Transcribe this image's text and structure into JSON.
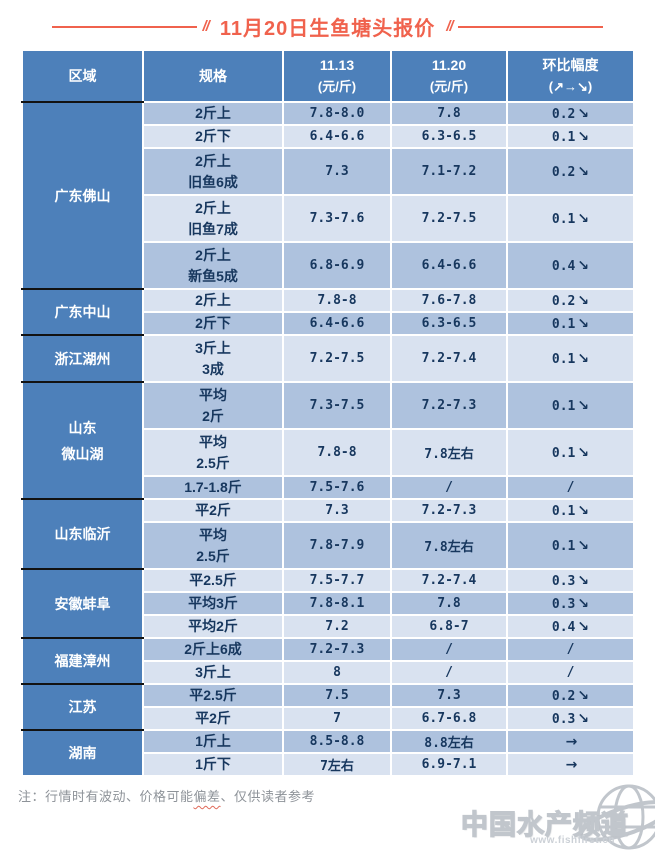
{
  "title": {
    "text": "11月20日生鱼塘头报价",
    "decor": "//"
  },
  "header": {
    "region": "区域",
    "spec": "规格",
    "date1": "11.13",
    "date2": "11.20",
    "unit": "(元/斤)",
    "change": "环比幅度",
    "change_sub": "(↗→↘)"
  },
  "colors": {
    "header_blue": "#4d80ba",
    "row_dark": "#aec2de",
    "row_light": "#d9e2f0",
    "text_navy": "#17375e",
    "green": "#00a651",
    "title_coral": "#f0624d"
  },
  "table": {
    "regions": [
      {
        "name": "广东佛山",
        "rows": [
          {
            "spec": "2斤上",
            "p1113": "7.8-8.0",
            "p1120": "7.8",
            "change": "0.2",
            "dir": "down"
          },
          {
            "spec": "2斤下",
            "p1113": "6.4-6.6",
            "p1120": "6.3-6.5",
            "change": "0.1",
            "dir": "down"
          },
          {
            "spec": "2斤上\n旧鱼6成",
            "p1113": "7.3",
            "p1120": "7.1-7.2",
            "change": "0.2",
            "dir": "down"
          },
          {
            "spec": "2斤上\n旧鱼7成",
            "p1113": "7.3-7.6",
            "p1120": "7.2-7.5",
            "change": "0.1",
            "dir": "down"
          },
          {
            "spec": "2斤上\n新鱼5成",
            "p1113": "6.8-6.9",
            "p1120": "6.4-6.6",
            "change": "0.4",
            "dir": "down"
          }
        ]
      },
      {
        "name": "广东中山",
        "rows": [
          {
            "spec": "2斤上",
            "p1113": "7.8-8",
            "p1120": "7.6-7.8",
            "change": "0.2",
            "dir": "down"
          },
          {
            "spec": "2斤下",
            "p1113": "6.4-6.6",
            "p1120": "6.3-6.5",
            "change": "0.1",
            "dir": "down"
          }
        ]
      },
      {
        "name": "浙江湖州",
        "rows": [
          {
            "spec": "3斤上\n3成",
            "p1113": "7.2-7.5",
            "p1120": "7.2-7.4",
            "change": "0.1",
            "dir": "down"
          }
        ]
      },
      {
        "name": "山东\n微山湖",
        "rows": [
          {
            "spec": "平均\n2斤",
            "p1113": "7.3-7.5",
            "p1120": "7.2-7.3",
            "change": "0.1",
            "dir": "down"
          },
          {
            "spec": "平均\n2.5斤",
            "p1113": "7.8-8",
            "p1120": "7.8左右",
            "change": "0.1",
            "dir": "down"
          },
          {
            "spec": "1.7-1.8斤",
            "p1113": "7.5-7.6",
            "p1120": "/",
            "change": "/",
            "dir": "na"
          }
        ]
      },
      {
        "name": "山东临沂",
        "rows": [
          {
            "spec": "平2斤",
            "p1113": "7.3",
            "p1120": "7.2-7.3",
            "change": "0.1",
            "dir": "down"
          },
          {
            "spec": "平均\n2.5斤",
            "p1113": "7.8-7.9",
            "p1120": "7.8左右",
            "change": "0.1",
            "dir": "down"
          }
        ]
      },
      {
        "name": "安徽蚌阜",
        "rows": [
          {
            "spec": "平2.5斤",
            "p1113": "7.5-7.7",
            "p1120": "7.2-7.4",
            "change": "0.3",
            "dir": "down"
          },
          {
            "spec": "平均3斤",
            "p1113": "7.8-8.1",
            "p1120": "7.8",
            "change": "0.3",
            "dir": "down"
          },
          {
            "spec": "平均2斤",
            "p1113": "7.2",
            "p1120": "6.8-7",
            "change": "0.4",
            "dir": "down"
          }
        ]
      },
      {
        "name": "福建漳州",
        "rows": [
          {
            "spec": "2斤上6成",
            "p1113": "7.2-7.3",
            "p1120": "/",
            "change": "/",
            "dir": "na_green"
          },
          {
            "spec": "3斤上",
            "p1113": "8",
            "p1120": "/",
            "change": "/",
            "dir": "na_green"
          }
        ]
      },
      {
        "name": "江苏",
        "rows": [
          {
            "spec": "平2.5斤",
            "p1113": "7.5",
            "p1120": "7.3",
            "change": "0.2",
            "dir": "down"
          },
          {
            "spec": "平2斤",
            "p1113": "7",
            "p1120": "6.7-6.8",
            "change": "0.3",
            "dir": "down"
          }
        ]
      },
      {
        "name": "湖南",
        "rows": [
          {
            "spec": "1斤上",
            "p1113": "8.5-8.8",
            "p1120": "8.8左右",
            "change": "→",
            "dir": "flat"
          },
          {
            "spec": "1斤下",
            "p1113": "7左右",
            "p1120": "6.9-7.1",
            "change": "→",
            "dir": "flat"
          }
        ]
      }
    ]
  },
  "note": {
    "prefix": "注：行情时有波动、价格可能",
    "squiggle": "偏差",
    "suffix": "、仅供读者参考"
  },
  "watermark": {
    "name": "中国水产频道",
    "url": "www.fishfirst.cn"
  }
}
